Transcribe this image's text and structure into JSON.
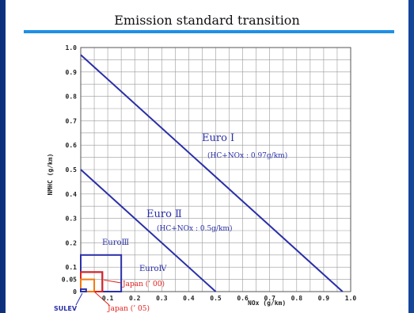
{
  "slide": {
    "title": "Emission standard transition",
    "background_color": "#1b3f8c",
    "underline_color": "#1e90e6"
  },
  "chart_data": {
    "type": "line",
    "title": "Emission standard transition",
    "xlabel": "NOx (g/km)",
    "ylabel": "NMHC (g/km)",
    "xlim": [
      0,
      1.0
    ],
    "ylim": [
      0,
      1.0
    ],
    "grid": true,
    "x_ticks": [
      {
        "v": 0,
        "label": "0"
      },
      {
        "v": 0.1,
        "label": "0.1"
      },
      {
        "v": 0.2,
        "label": "0.2"
      },
      {
        "v": 0.3,
        "label": "0.3"
      },
      {
        "v": 0.4,
        "label": "0.4"
      },
      {
        "v": 0.5,
        "label": "0.5"
      },
      {
        "v": 0.6,
        "label": "0.6"
      },
      {
        "v": 0.7,
        "label": "0.7"
      },
      {
        "v": 0.8,
        "label": "0.8"
      },
      {
        "v": 0.9,
        "label": "0.9"
      },
      {
        "v": 1.0,
        "label": "1.0"
      }
    ],
    "y_ticks": [
      {
        "v": 0,
        "label": "0"
      },
      {
        "v": 0.05,
        "label": "0.05"
      },
      {
        "v": 0.1,
        "label": "0.1"
      },
      {
        "v": 0.2,
        "label": "0.2"
      },
      {
        "v": 0.3,
        "label": "0.3"
      },
      {
        "v": 0.4,
        "label": "0.4"
      },
      {
        "v": 0.5,
        "label": "0.5"
      },
      {
        "v": 0.6,
        "label": "0.6"
      },
      {
        "v": 0.7,
        "label": "0.7"
      },
      {
        "v": 0.8,
        "label": "0.8"
      },
      {
        "v": 0.9,
        "label": "0.9"
      },
      {
        "v": 1.0,
        "label": "1.0"
      }
    ],
    "series": [
      {
        "name": "Euro I",
        "note": "(HC+NOx : 0.97g/km)",
        "shape": "line",
        "color": "#2a2fa8",
        "points": [
          [
            0,
            0.97
          ],
          [
            0.97,
            0
          ]
        ]
      },
      {
        "name": "Euro II",
        "note": "(HC+NOx : 0.5g/km)",
        "shape": "line",
        "color": "#2a2fa8",
        "points": [
          [
            0,
            0.5
          ],
          [
            0.5,
            0
          ]
        ]
      },
      {
        "name": "Euro III",
        "shape": "rect",
        "color": "#2a2fa8",
        "x": 0.15,
        "y": 0.15
      },
      {
        "name": "Euro IV",
        "shape": "rect",
        "color": "#2a2fa8",
        "x": 0.08,
        "y": 0.08
      },
      {
        "name": "Japan ('00)",
        "shape": "rect",
        "color": "#e0201b",
        "x": 0.08,
        "y": 0.08
      },
      {
        "name": "Japan ('05)",
        "shape": "rect",
        "color": "#f07a10",
        "x": 0.05,
        "y": 0.05
      },
      {
        "name": "SULEV",
        "shape": "rect",
        "color": "#2a2fa8",
        "x": 0.02,
        "y": 0.01
      }
    ],
    "annotations": {
      "euro1_label": "Euro Ⅰ",
      "euro1_note": "(HC+NOx : 0.97g/km)",
      "euro2_label": "Euro Ⅱ",
      "euro2_note": "(HC+NOx : 0.5g/km)",
      "euro3_label": "EuroⅢ",
      "euro4_label": "EuroⅣ",
      "japan00_label": "Japan (’ 00)",
      "japan05_label": "Japan (’ 05)",
      "sulev_label": "SULEV"
    }
  }
}
